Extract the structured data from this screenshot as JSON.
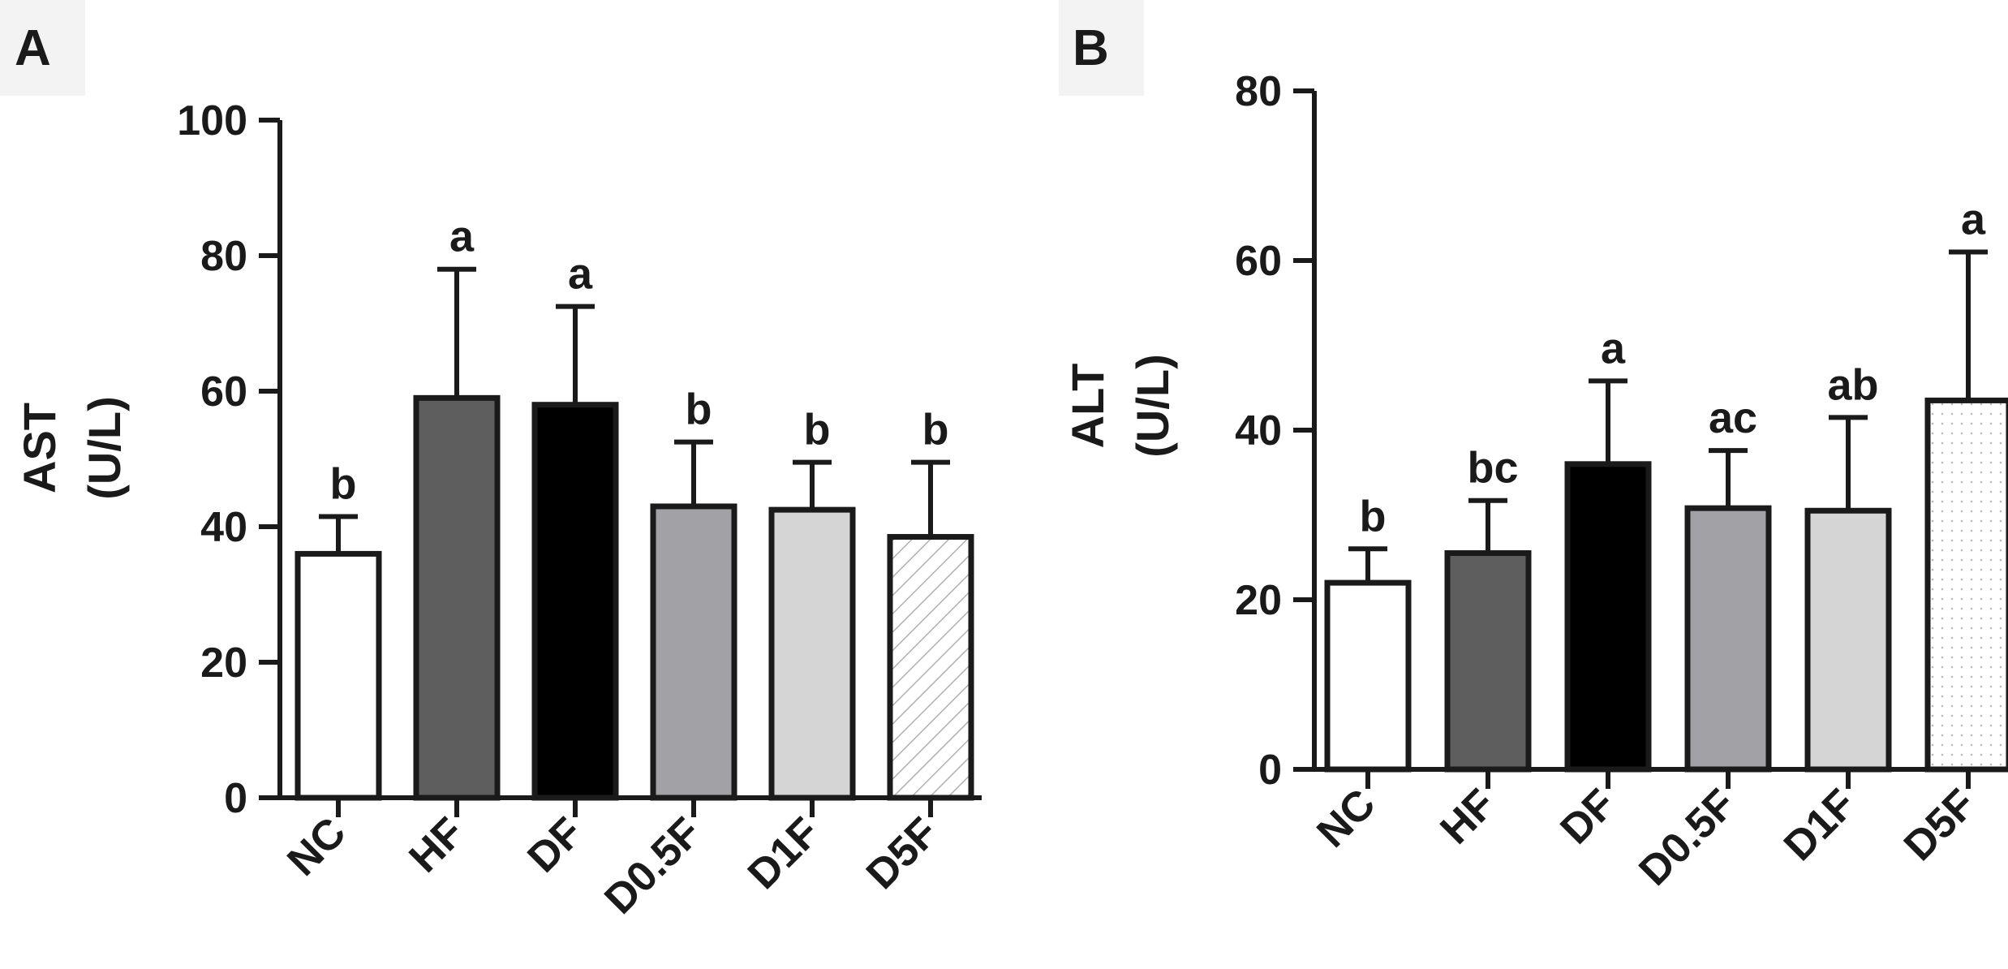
{
  "colors": {
    "axis": "#1a1a1a",
    "NC": "#ffffff",
    "HF": "#5e5e5e",
    "DF": "#000000",
    "D0.5F": "#a1a1a6",
    "D1F": "#d5d5d5",
    "D5F": "#ffffff",
    "panel_label_bg": "#f3f3f3"
  },
  "chart_data": [
    {
      "type": "bar",
      "panel_label": "A",
      "ylabel": "AST",
      "yunit": "(U/L)",
      "categories": [
        "NC",
        "HF",
        "DF",
        "D0.5F",
        "D1F",
        "D5F"
      ],
      "values": [
        36,
        59,
        58,
        43,
        42.5,
        38.5
      ],
      "errors": [
        5.5,
        19,
        14.5,
        9.5,
        7,
        11
      ],
      "annotations": [
        "b",
        "a",
        "a",
        "b",
        "b",
        "b"
      ],
      "ylim": [
        0,
        100
      ],
      "yticks": [
        0,
        20,
        40,
        60,
        80,
        100
      ],
      "fills": [
        "solid",
        "solid",
        "solid",
        "solid",
        "solid",
        "hatch"
      ],
      "grid": false
    },
    {
      "type": "bar",
      "panel_label": "B",
      "ylabel": "ALT",
      "yunit": "(U/L)",
      "categories": [
        "NC",
        "HF",
        "DF",
        "D0.5F",
        "D1F",
        "D5F"
      ],
      "values": [
        22,
        25.5,
        36,
        30.8,
        30.5,
        43.5
      ],
      "errors": [
        4,
        6.2,
        9.8,
        6.8,
        11,
        17.5
      ],
      "annotations": [
        "b",
        "bc",
        "a",
        "ac",
        "ab",
        "a"
      ],
      "ylim": [
        0,
        80
      ],
      "yticks": [
        0,
        20,
        40,
        60,
        80
      ],
      "fills": [
        "solid",
        "solid",
        "solid",
        "solid",
        "solid",
        "dots"
      ],
      "grid": false
    }
  ]
}
